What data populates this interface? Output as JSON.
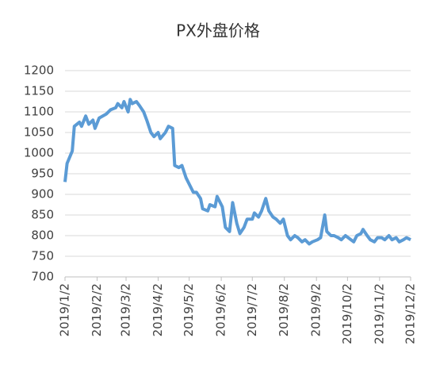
{
  "chart_data": {
    "type": "line",
    "title": "PX外盘价格",
    "series": [
      {
        "name": "PX",
        "color": "#5b9bd5",
        "x": [
          "2019/1/2",
          "2019/1/4",
          "2019/1/9",
          "2019/1/11",
          "2019/1/16",
          "2019/1/18",
          "2019/1/22",
          "2019/1/25",
          "2019/1/29",
          "2019/1/31",
          "2019/2/4",
          "2019/2/11",
          "2019/2/15",
          "2019/2/20",
          "2019/2/22",
          "2019/2/26",
          "2019/2/28",
          "2019/3/4",
          "2019/3/6",
          "2019/3/8",
          "2019/3/12",
          "2019/3/15",
          "2019/3/19",
          "2019/3/22",
          "2019/3/26",
          "2019/3/29",
          "2019/4/2",
          "2019/4/4",
          "2019/4/9",
          "2019/4/12",
          "2019/4/16",
          "2019/4/18",
          "2019/4/22",
          "2019/4/25",
          "2019/4/29",
          "2019/5/2",
          "2019/5/6",
          "2019/5/9",
          "2019/5/13",
          "2019/5/15",
          "2019/5/20",
          "2019/5/22",
          "2019/5/27",
          "2019/5/29",
          "2019/6/3",
          "2019/6/6",
          "2019/6/10",
          "2019/6/13",
          "2019/6/17",
          "2019/6/20",
          "2019/6/24",
          "2019/6/27",
          "2019/7/2",
          "2019/7/4",
          "2019/7/8",
          "2019/7/11",
          "2019/7/15",
          "2019/7/18",
          "2019/7/22",
          "2019/7/25",
          "2019/7/29",
          "2019/8/1",
          "2019/8/5",
          "2019/8/8",
          "2019/8/12",
          "2019/8/15",
          "2019/8/19",
          "2019/8/22",
          "2019/8/26",
          "2019/8/29",
          "2019/9/3",
          "2019/9/6",
          "2019/9/10",
          "2019/9/12",
          "2019/9/16",
          "2019/9/19",
          "2019/9/23",
          "2019/9/26",
          "2019/9/30",
          "2019/10/8",
          "2019/10/11",
          "2019/10/15",
          "2019/10/17",
          "2019/10/21",
          "2019/10/24",
          "2019/10/28",
          "2019/10/31",
          "2019/11/4",
          "2019/11/7",
          "2019/11/11",
          "2019/11/14",
          "2019/11/18",
          "2019/11/21",
          "2019/11/25",
          "2019/11/28",
          "2019/12/2"
        ],
        "values": [
          930,
          975,
          1005,
          1065,
          1075,
          1065,
          1090,
          1070,
          1080,
          1060,
          1085,
          1095,
          1105,
          1110,
          1120,
          1110,
          1125,
          1100,
          1130,
          1120,
          1125,
          1115,
          1100,
          1080,
          1050,
          1040,
          1050,
          1035,
          1050,
          1065,
          1060,
          970,
          965,
          970,
          940,
          925,
          905,
          905,
          890,
          865,
          860,
          875,
          870,
          895,
          870,
          820,
          810,
          880,
          830,
          805,
          820,
          840,
          840,
          855,
          845,
          860,
          890,
          860,
          845,
          840,
          830,
          840,
          800,
          790,
          800,
          795,
          785,
          790,
          780,
          785,
          790,
          795,
          850,
          810,
          800,
          800,
          795,
          790,
          800,
          785,
          800,
          805,
          815,
          800,
          790,
          785,
          795,
          795,
          790,
          800,
          790,
          795,
          785,
          790,
          795,
          790
        ]
      }
    ],
    "xlim": [
      "2019/1/2",
      "2019/12/2"
    ],
    "xticks": [
      "2019/1/2",
      "2019/2/2",
      "2019/3/2",
      "2019/4/2",
      "2019/5/2",
      "2019/6/2",
      "2019/7/2",
      "2019/8/2",
      "2019/9/2",
      "2019/10/2",
      "2019/11/2",
      "2019/12/2"
    ],
    "ylim": [
      700,
      1200
    ],
    "yticks": [
      700,
      750,
      800,
      850,
      900,
      950,
      1000,
      1050,
      1100,
      1150,
      1200
    ],
    "grid": true
  }
}
